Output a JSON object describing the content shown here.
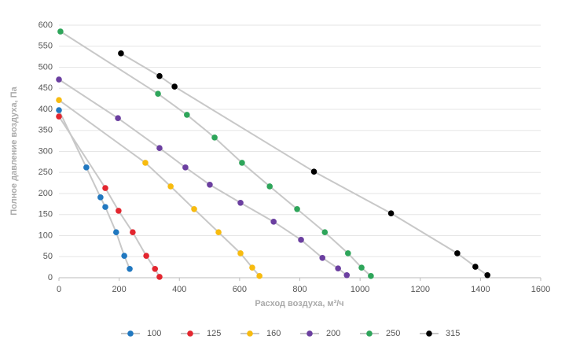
{
  "chart_data": {
    "type": "line",
    "xlabel": "Расход воздуха, м³/ч",
    "ylabel": "Полное давление воздуха, Па",
    "xlim": [
      0,
      1600
    ],
    "xticks": [
      0,
      200,
      400,
      600,
      800,
      1000,
      1200,
      1400,
      1600
    ],
    "ylim": [
      0,
      600
    ],
    "yticks": [
      0,
      50,
      100,
      150,
      200,
      250,
      300,
      350,
      400,
      450,
      500,
      550,
      600
    ],
    "grid": true,
    "legend": "bottom",
    "line_color": "#c8c8c8",
    "series": [
      {
        "name": "100",
        "color": "#2178c0",
        "x": [
          0,
          91,
          138,
          154,
          190,
          217,
          235
        ],
        "values": [
          398,
          262,
          191,
          168,
          108,
          52,
          21
        ]
      },
      {
        "name": "125",
        "color": "#e3262f",
        "x": [
          0,
          154,
          198,
          245,
          290,
          319,
          334
        ],
        "values": [
          383,
          213,
          159,
          108,
          52,
          21,
          2
        ]
      },
      {
        "name": "160",
        "color": "#f7bb0f",
        "x": [
          0,
          287,
          371,
          449,
          530,
          603,
          642,
          666
        ],
        "values": [
          422,
          273,
          217,
          163,
          108,
          58,
          24,
          4
        ]
      },
      {
        "name": "200",
        "color": "#6b3fa0",
        "x": [
          0,
          196,
          334,
          420,
          501,
          603,
          713,
          804,
          875,
          927,
          956
        ],
        "values": [
          471,
          379,
          308,
          262,
          221,
          178,
          133,
          90,
          47,
          22,
          6
        ]
      },
      {
        "name": "250",
        "color": "#2ea55a",
        "x": [
          5,
          329,
          425,
          517,
          608,
          700,
          791,
          883,
          960,
          1005,
          1036
        ],
        "values": [
          585,
          437,
          387,
          333,
          273,
          217,
          163,
          108,
          58,
          24,
          4
        ]
      },
      {
        "name": "315",
        "color": "#000000",
        "x": [
          206,
          334,
          384,
          847,
          1103,
          1323,
          1383,
          1423
        ],
        "values": [
          533,
          479,
          454,
          252,
          153,
          58,
          26,
          6
        ]
      }
    ]
  }
}
